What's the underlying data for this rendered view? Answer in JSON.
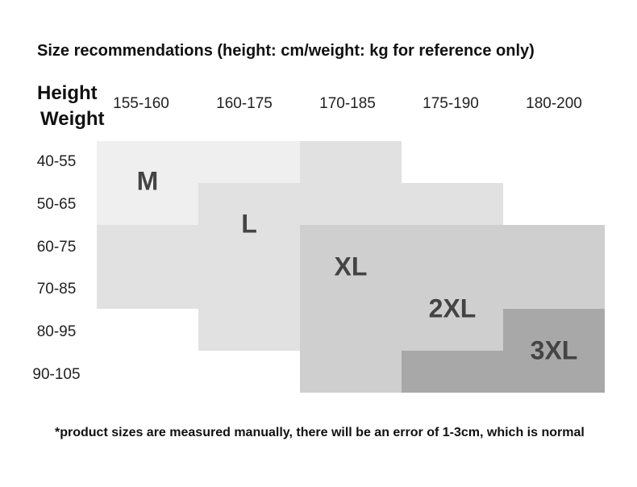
{
  "chart_data": {
    "type": "table",
    "title": "Size recommendations (height: cm/weight: kg for reference only)",
    "header_height_label": "Height",
    "header_weight_label": "Weight",
    "height_ranges": [
      "155-160",
      "160-175",
      "170-185",
      "175-190",
      "180-200"
    ],
    "weight_ranges": [
      "40-55",
      "50-65",
      "60-75",
      "70-85",
      "80-95",
      "90-105"
    ],
    "sizes": [
      {
        "label": "M",
        "height_cols": [
          0,
          1
        ],
        "weight_rows": [
          0,
          1
        ]
      },
      {
        "label": "L",
        "height_cols": [
          1,
          2
        ],
        "weight_rows": [
          1,
          2
        ]
      },
      {
        "label": "XL",
        "height_cols": [
          2,
          3
        ],
        "weight_rows": [
          2,
          3
        ]
      },
      {
        "label": "2XL",
        "height_cols": [
          3,
          4
        ],
        "weight_rows": [
          3,
          4
        ]
      },
      {
        "label": "3XL",
        "height_cols": [
          4
        ],
        "weight_rows": [
          4,
          5
        ]
      }
    ],
    "colors": {
      "level_0": "#efefef",
      "level_1": "#e1e1e1",
      "level_2": "#cfcfcf",
      "level_3": "#bebebe",
      "level_4": "#a8a8a8"
    }
  },
  "footnote": "*product sizes are measured manually, there will be an error of 1-3cm, which is normal"
}
